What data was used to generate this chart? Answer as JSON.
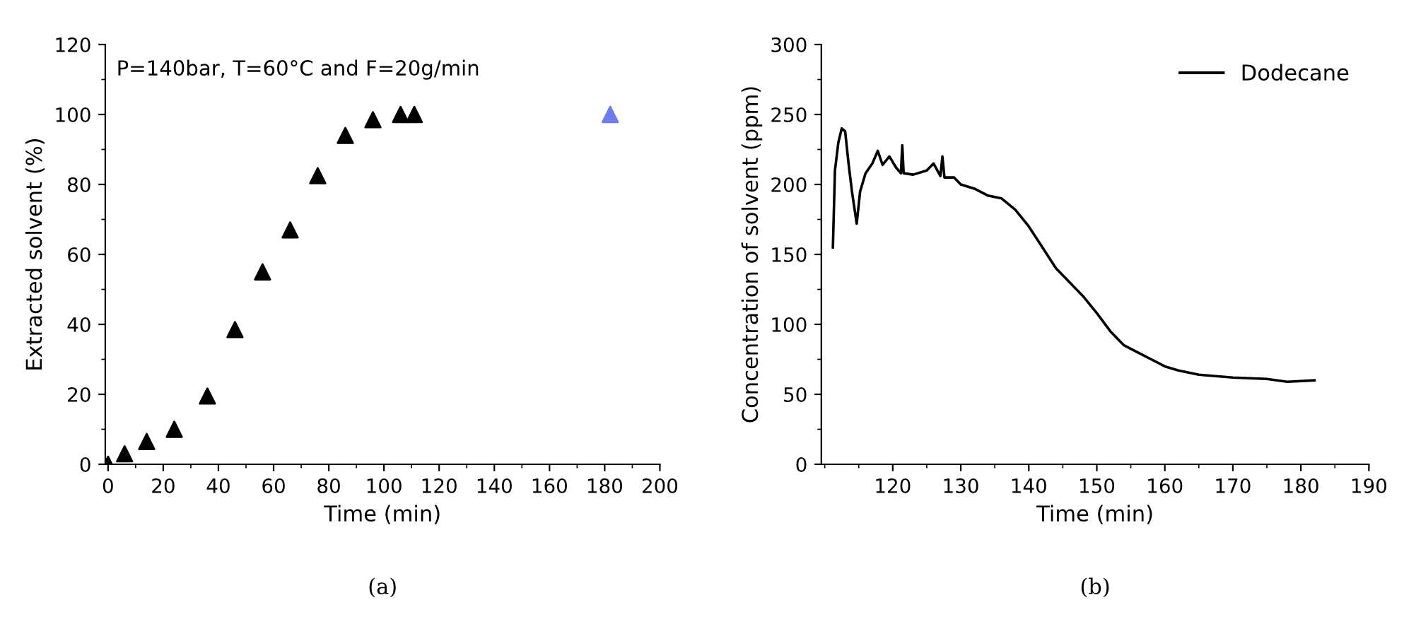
{
  "chart_data": [
    {
      "type": "scatter",
      "xlabel": "Time (min)",
      "ylabel": "Extracted solvent (%)",
      "xlim": [
        -1,
        200
      ],
      "ylim": [
        0,
        120
      ],
      "xticks": [
        0,
        20,
        40,
        60,
        80,
        100,
        120,
        140,
        160,
        180,
        200
      ],
      "yticks": [
        0,
        20,
        40,
        60,
        80,
        100,
        120
      ],
      "marker": "triangle",
      "grid": false,
      "legend": false,
      "series": [
        {
          "color": "#000000",
          "x": [
            0,
            6,
            14,
            24,
            36,
            46,
            56,
            66,
            76,
            86,
            96,
            106,
            111
          ],
          "values": [
            0,
            3,
            6.5,
            10,
            19.5,
            38.5,
            55,
            67,
            82.5,
            94,
            98.5,
            100,
            100
          ]
        },
        {
          "color": "#6a7cf0",
          "x": [
            182
          ],
          "values": [
            100
          ]
        }
      ],
      "annotations": [
        "P=140bar, T=60°C and F=20g/min",
        "(a)"
      ]
    },
    {
      "type": "line",
      "xlabel": "Time (min)",
      "ylabel": "Concentration of solvent (ppm)",
      "xlim": [
        109.5,
        190
      ],
      "ylim": [
        0,
        300
      ],
      "xticks": [
        120,
        130,
        140,
        150,
        160,
        170,
        180,
        190
      ],
      "yticks": [
        0,
        50,
        100,
        150,
        200,
        250,
        300
      ],
      "grid": false,
      "legend": "top right",
      "line_style": "solid",
      "marker": "none",
      "series": [
        {
          "name": "Dodecane",
          "color": "#000000",
          "x": [
            111.2,
            111.5,
            112,
            112.5,
            113,
            113.5,
            114,
            114.7,
            115.2,
            116,
            117,
            117.8,
            118.5,
            119.5,
            120.5,
            121.2,
            121.4,
            121.6,
            123,
            125,
            126,
            127,
            127.3,
            127.6,
            129,
            130,
            132,
            134,
            136,
            138,
            140,
            142,
            144,
            146,
            148,
            150,
            152,
            154,
            156,
            158,
            160,
            162,
            165,
            170,
            175,
            178,
            182
          ],
          "values": [
            155,
            210,
            230,
            240,
            238,
            215,
            195,
            172,
            195,
            208,
            215,
            224,
            214,
            220,
            212,
            208,
            228,
            208,
            207,
            210,
            215,
            206,
            220,
            205,
            205,
            200,
            197,
            192,
            190,
            182,
            170,
            155,
            140,
            130,
            120,
            108,
            95,
            85,
            80,
            75,
            70,
            67,
            64,
            62,
            61,
            59,
            60
          ]
        }
      ],
      "annotations": [
        "(b)"
      ]
    }
  ]
}
